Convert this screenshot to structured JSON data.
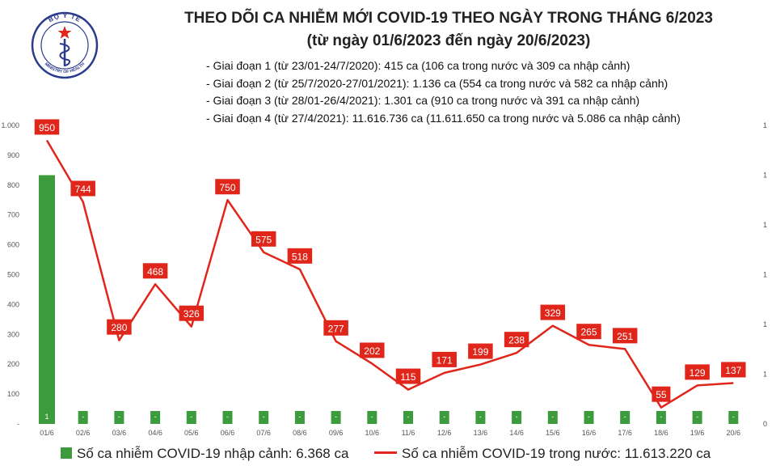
{
  "header": {
    "title_line1": "THEO DÕI CA NHIỄM MỚI COVID-19 THEO NGÀY TRONG THÁNG 6/2023",
    "title_line2": "(từ ngày 01/6/2023 đến ngày 20/6/2023)",
    "notes": [
      "- Giai đoạn 1 (từ 23/01-24/7/2020): 415 ca (106 ca trong nước và 309 ca nhập cảnh)",
      "- Giai đoạn 2 (từ 25/7/2020-27/01/2021): 1.136 ca (554 ca trong nước và 582 ca nhập cảnh)",
      "- Giai đoạn 3 (từ 28/01-26/4/2021): 1.301 ca (910 ca trong nước và 391 ca nhập cảnh)",
      "- Giai đoạn 4 (từ 27/4/2021): 11.616.736 ca (11.611.650 ca trong nước và 5.086 ca nhập cảnh)"
    ]
  },
  "logo": {
    "top_text": "BỘ Y TẾ",
    "bottom_text": "MINISTRY OF HEALTH"
  },
  "legend": {
    "bar_label": "Số ca nhiễm COVID-19 nhập cảnh: 6.368 ca",
    "line_label": "Số ca nhiễm COVID-19 trong nước: 11.613.220 ca"
  },
  "colors": {
    "bar": "#3c9b3c",
    "line": "#e0251b",
    "label_bg": "#e0251b"
  },
  "chart_data": {
    "type": "bar+line",
    "categories": [
      "01/6",
      "02/6",
      "03/6",
      "04/6",
      "05/6",
      "06/6",
      "07/6",
      "08/6",
      "09/6",
      "10/6",
      "11/6",
      "12/6",
      "13/6",
      "14/6",
      "15/6",
      "16/6",
      "17/6",
      "18/6",
      "19/6",
      "20/6"
    ],
    "series": [
      {
        "name": "Số ca nhiễm COVID-19 nhập cảnh: 6.368 ca",
        "type": "bar",
        "axis": "right",
        "values": [
          1,
          0,
          0,
          0,
          0,
          0,
          0,
          0,
          0,
          0,
          0,
          0,
          0,
          0,
          0,
          0,
          0,
          0,
          0,
          0
        ],
        "data_labels": [
          "1",
          "-",
          "-",
          "-",
          "-",
          "-",
          "-",
          "-",
          "-",
          "-",
          "-",
          "-",
          "-",
          "-",
          "-",
          "-",
          "-",
          "-",
          "-",
          "-"
        ]
      },
      {
        "name": "Số ca nhiễm COVID-19 trong nước: 11.613.220 ca",
        "type": "line",
        "axis": "left",
        "values": [
          950,
          744,
          280,
          468,
          326,
          750,
          575,
          518,
          277,
          202,
          115,
          171,
          199,
          238,
          329,
          265,
          251,
          55,
          129,
          137
        ]
      }
    ],
    "left_axis": {
      "ylim": [
        0,
        1000
      ],
      "ticks": [
        "-",
        "100",
        "200",
        "300",
        "400",
        "500",
        "600",
        "700",
        "800",
        "900",
        "1.000"
      ]
    },
    "right_axis": {
      "ylim": [
        0,
        1.2
      ],
      "ticks": [
        "0",
        "1",
        "1",
        "1",
        "1",
        "1",
        "1"
      ]
    },
    "legend_position": "bottom",
    "grid": false
  }
}
